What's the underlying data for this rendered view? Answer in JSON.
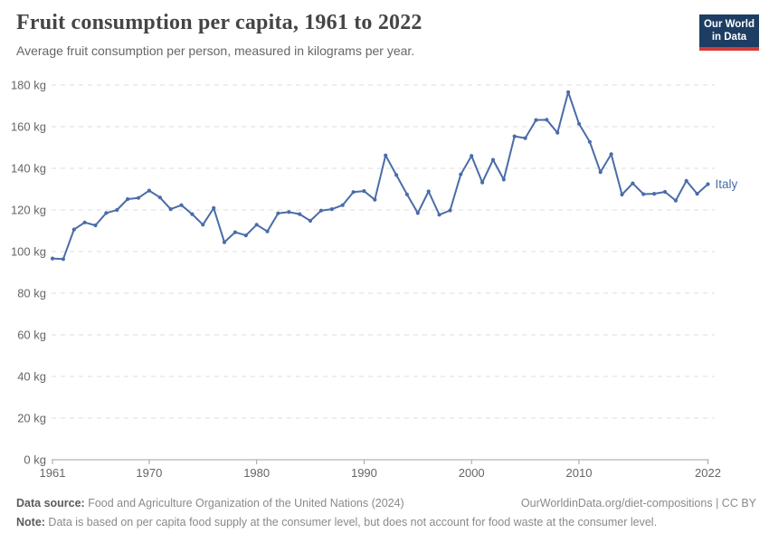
{
  "header": {
    "title": "Fruit consumption per capita, 1961 to 2022",
    "subtitle": "Average fruit consumption per person, measured in kilograms per year.",
    "logo_line1": "Our World",
    "logo_line2": "in Data"
  },
  "chart_data": {
    "type": "line",
    "title": "Fruit consumption per capita, 1961 to 2022",
    "unit": "kg",
    "ylabel": "kilograms per year",
    "xlabel": "",
    "ylim": [
      0,
      180
    ],
    "ytick_step": 20,
    "ytick_suffix": " kg",
    "xticks": [
      1961,
      1970,
      1980,
      1990,
      2000,
      2010,
      2022
    ],
    "grid": "horizontal-dashed",
    "legend_position": "end-of-line",
    "x": [
      1961,
      1962,
      1963,
      1964,
      1965,
      1966,
      1967,
      1968,
      1969,
      1970,
      1971,
      1972,
      1973,
      1974,
      1975,
      1976,
      1977,
      1978,
      1979,
      1980,
      1981,
      1982,
      1983,
      1984,
      1985,
      1986,
      1987,
      1988,
      1989,
      1990,
      1991,
      1992,
      1993,
      1994,
      1995,
      1996,
      1997,
      1998,
      1999,
      2000,
      2001,
      2002,
      2003,
      2004,
      2005,
      2006,
      2007,
      2008,
      2009,
      2010,
      2011,
      2012,
      2013,
      2014,
      2015,
      2016,
      2017,
      2018,
      2019,
      2020,
      2021,
      2022
    ],
    "series": [
      {
        "name": "Italy",
        "color": "#4a6ca8",
        "values": [
          96.7,
          96.4,
          110.6,
          114.0,
          112.6,
          118.5,
          120.0,
          125.2,
          125.8,
          129.3,
          126.0,
          120.4,
          122.3,
          118.0,
          112.9,
          120.9,
          104.5,
          109.3,
          107.8,
          112.9,
          109.7,
          118.4,
          119.0,
          118.0,
          114.8,
          119.7,
          120.4,
          122.3,
          128.6,
          129.1,
          124.9,
          146.2,
          136.8,
          127.5,
          118.5,
          128.9,
          117.7,
          119.8,
          137.1,
          146.0,
          133.2,
          144.1,
          134.6,
          155.4,
          154.5,
          163.2,
          163.3,
          157.1,
          176.6,
          161.4,
          152.7,
          138.2,
          146.8,
          127.4,
          132.8,
          127.6,
          127.8,
          128.7,
          124.5,
          134.0,
          127.8,
          132.4
        ]
      }
    ]
  },
  "footer": {
    "source_label": "Data source:",
    "source_text": " Food and Agriculture Organization of the United Nations (2024)",
    "link_text": "OurWorldinData.org/diet-compositions",
    "divider": " | ",
    "license_text": "CC BY",
    "note_label": "Note:",
    "note_text": " Data is based on per capita food supply at the consumer level, but does not account for food waste at the consumer level."
  },
  "colors": {
    "line": "#4a6ca8",
    "grid": "#dcdcdc",
    "axis": "#a3a3a3",
    "tick_text": "#666666",
    "title_text": "#454545",
    "subtitle_text": "#666666",
    "footer_text": "#8a8a8a",
    "logo_bg": "#1d3d63",
    "logo_accent": "#d73a36"
  }
}
